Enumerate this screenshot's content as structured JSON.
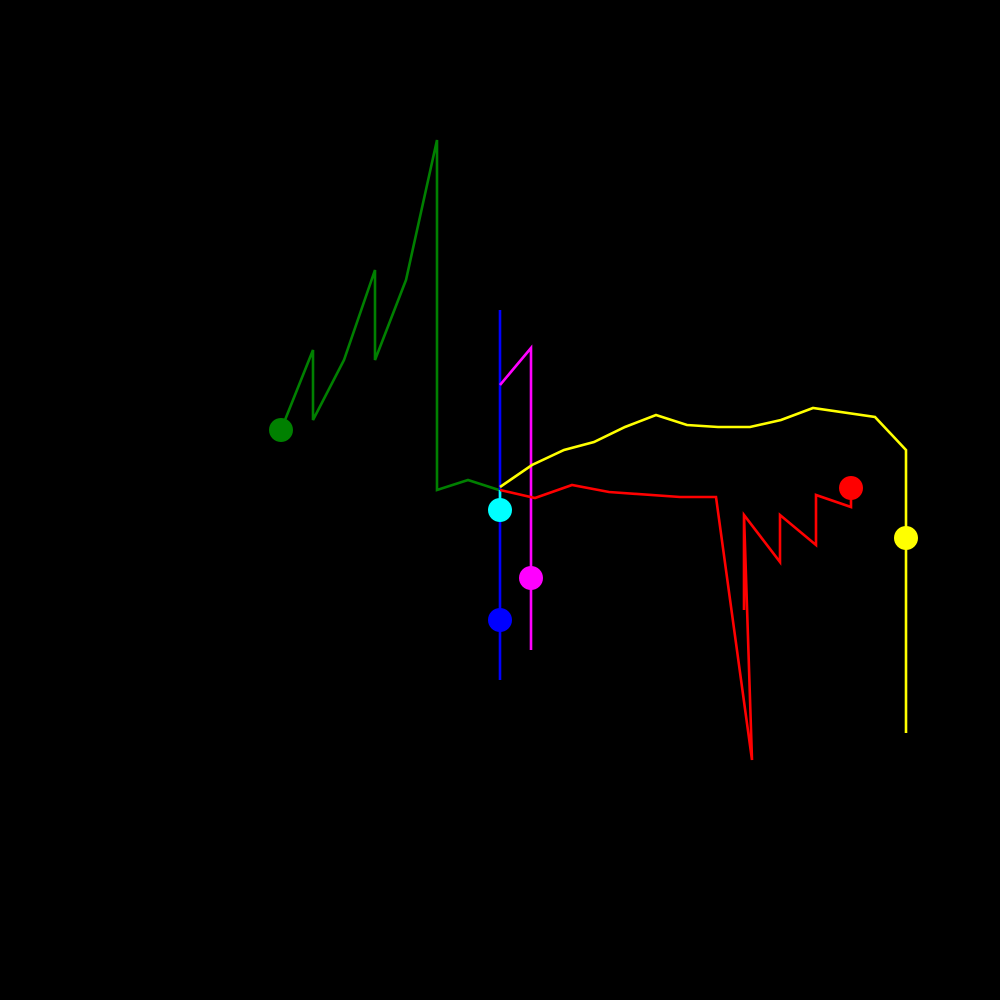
{
  "background": "#000000",
  "traces": [
    {
      "id": "green",
      "color": "#008000",
      "marker": "start",
      "points": [
        [
          281,
          430
        ],
        [
          313,
          350
        ],
        [
          313,
          420
        ],
        [
          344,
          360
        ],
        [
          375,
          270
        ],
        [
          375,
          360
        ],
        [
          406,
          280
        ],
        [
          437,
          140
        ],
        [
          437,
          490
        ],
        [
          468,
          480
        ],
        [
          499,
          490
        ]
      ]
    },
    {
      "id": "blue",
      "color": "#0000ff",
      "marker": "end",
      "points": [
        [
          500,
          310
        ],
        [
          500,
          550
        ],
        [
          500,
          385
        ],
        [
          500,
          680
        ],
        [
          500,
          620
        ]
      ]
    },
    {
      "id": "magenta",
      "color": "#ff00ff",
      "marker": "end",
      "points": [
        [
          500,
          385
        ],
        [
          531,
          348
        ],
        [
          531,
          408
        ],
        [
          531,
          398
        ],
        [
          531,
          650
        ],
        [
          531,
          578
        ]
      ]
    },
    {
      "id": "cyan",
      "color": "#00ffff",
      "marker": "end",
      "points": [
        [
          500,
          490
        ],
        [
          500,
          510
        ]
      ]
    },
    {
      "id": "red",
      "color": "#ff0000",
      "marker": "end",
      "points": [
        [
          500,
          490
        ],
        [
          535,
          498
        ],
        [
          572,
          485
        ],
        [
          609,
          492
        ],
        [
          680,
          497
        ],
        [
          716,
          497
        ],
        [
          752,
          760
        ],
        [
          744,
          515
        ],
        [
          744,
          610
        ],
        [
          744,
          515
        ],
        [
          780,
          562
        ],
        [
          780,
          515
        ],
        [
          816,
          545
        ],
        [
          816,
          495
        ],
        [
          851,
          507
        ],
        [
          851,
          488
        ]
      ]
    },
    {
      "id": "yellow",
      "color": "#ffff00",
      "marker": "end",
      "points": [
        [
          500,
          487
        ],
        [
          532,
          465
        ],
        [
          564,
          450
        ],
        [
          594,
          442
        ],
        [
          625,
          427
        ],
        [
          656,
          415
        ],
        [
          687,
          425
        ],
        [
          718,
          427
        ],
        [
          750,
          427
        ],
        [
          781,
          420
        ],
        [
          813,
          408
        ],
        [
          875,
          417
        ],
        [
          906,
          450
        ],
        [
          906,
          733
        ],
        [
          906,
          608
        ],
        [
          906,
          680
        ],
        [
          906,
          538
        ]
      ]
    }
  ]
}
